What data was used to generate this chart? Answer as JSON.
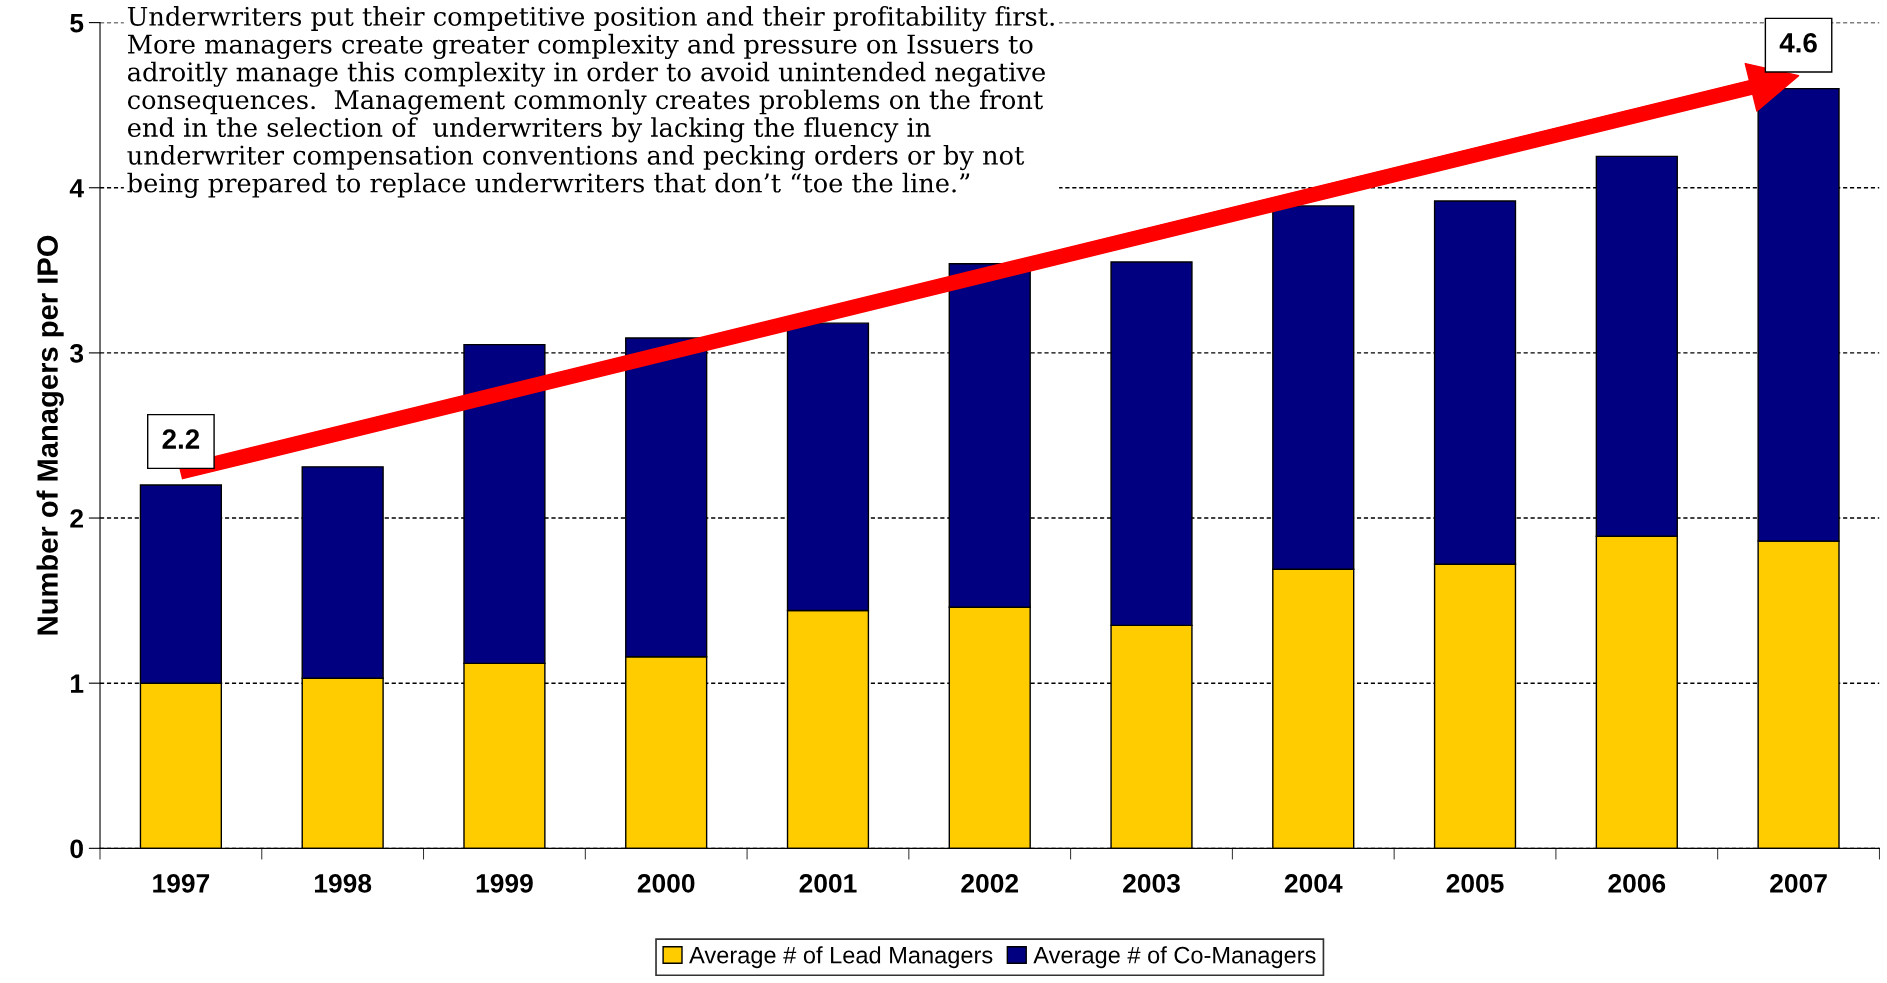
{
  "chart_data": {
    "type": "bar",
    "stacked": true,
    "ylabel": "Number of Managers per IPO",
    "categories": [
      "1997",
      "1998",
      "1999",
      "2000",
      "2001",
      "2002",
      "2003",
      "2004",
      "2005",
      "2006",
      "2007"
    ],
    "series": [
      {
        "name": "Average # of Lead Managers",
        "color": "#ffcc00",
        "values": [
          1.0,
          1.03,
          1.12,
          1.16,
          1.44,
          1.46,
          1.35,
          1.69,
          1.72,
          1.89,
          1.86
        ]
      },
      {
        "name": "Average # of Co-Managers",
        "color": "#000080",
        "values": [
          1.2,
          1.28,
          1.93,
          1.93,
          1.74,
          2.08,
          2.2,
          2.2,
          2.2,
          2.3,
          2.74
        ]
      }
    ],
    "ylim": [
      0,
      5
    ],
    "yticks": [
      0,
      1,
      2,
      3,
      4,
      5
    ],
    "grid": "y",
    "legend": "bottom",
    "annotations": [
      "Underwriters put their competitive position and their profitability first.\nMore managers create greater complexity and pressure on Issuers to\nadroitly manage this complexity in order to avoid unintended negative\nconsequences.  Management commonly creates problems on the front\nend in the selection of  underwriters by lacking the fluency in\nunderwriter compensation conventions and pecking orders or by not\nbeing prepared to replace underwriters that don’t “toe the line.”",
      {
        "text": "2.2",
        "x": "1997",
        "y": 2.2
      },
      {
        "text": "4.6",
        "x": "2007",
        "y": 4.6
      }
    ]
  }
}
